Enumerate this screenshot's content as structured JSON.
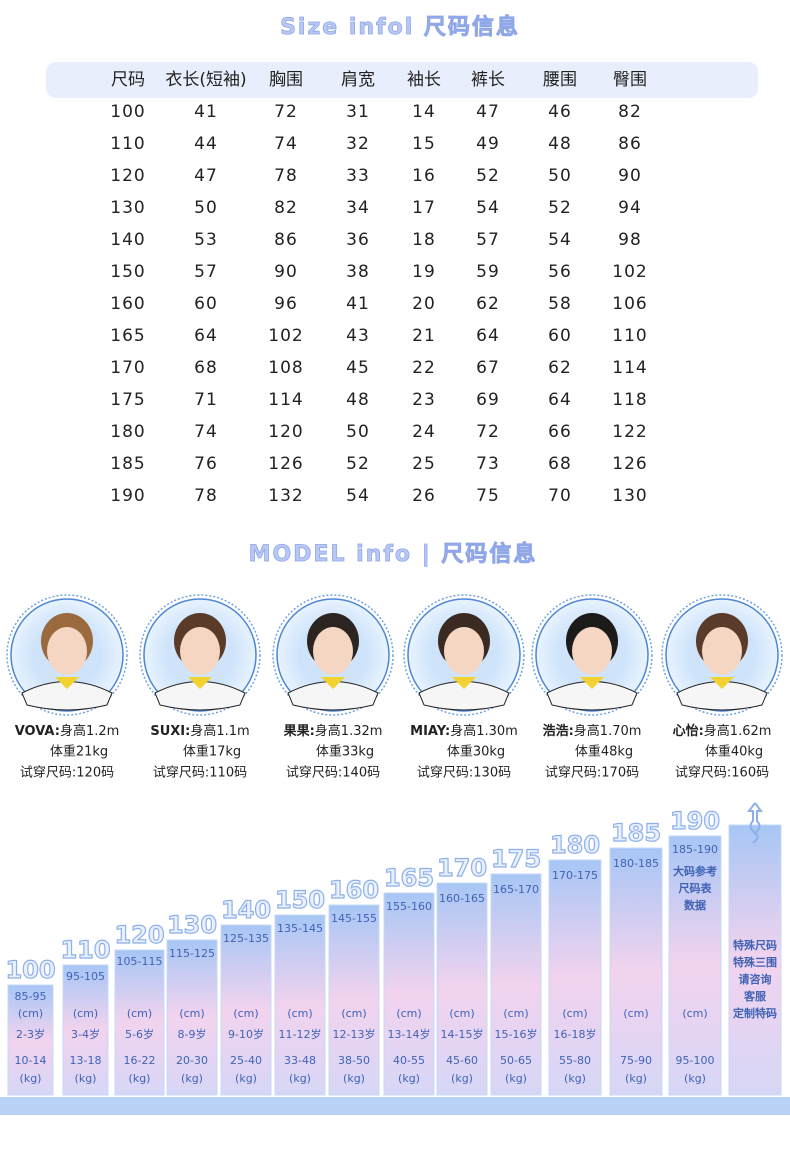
{
  "size_title": "Size infol 尺码信息",
  "size_table": {
    "header": [
      "尺码",
      "衣长(短袖)",
      "胸围",
      "肩宽",
      "袖长",
      "裤长",
      "腰围",
      "臀围"
    ],
    "rows": [
      [
        100,
        41,
        72,
        31,
        14,
        47,
        46,
        82
      ],
      [
        110,
        44,
        74,
        32,
        15,
        49,
        48,
        86
      ],
      [
        120,
        47,
        78,
        33,
        16,
        52,
        50,
        90
      ],
      [
        130,
        50,
        82,
        34,
        17,
        54,
        52,
        94
      ],
      [
        140,
        53,
        86,
        36,
        18,
        57,
        54,
        98
      ],
      [
        150,
        57,
        90,
        38,
        19,
        59,
        56,
        102
      ],
      [
        160,
        60,
        96,
        41,
        20,
        62,
        58,
        106
      ],
      [
        165,
        64,
        102,
        43,
        21,
        64,
        60,
        110
      ],
      [
        170,
        68,
        108,
        45,
        22,
        67,
        62,
        114
      ],
      [
        175,
        71,
        114,
        48,
        23,
        69,
        64,
        118
      ],
      [
        180,
        74,
        120,
        50,
        24,
        72,
        66,
        122
      ],
      [
        185,
        76,
        126,
        52,
        25,
        73,
        68,
        126
      ],
      [
        190,
        78,
        132,
        54,
        26,
        75,
        70,
        130
      ]
    ]
  },
  "model_title": "MODEL info | 尺码信息",
  "models": [
    {
      "name": "VOVA:",
      "height": "身高1.2m",
      "weight": "体重21kg",
      "size": "试穿尺码:120码"
    },
    {
      "name": "SUXI:",
      "height": "身高1.1m",
      "weight": "体重17kg",
      "size": "试穿尺码:110码"
    },
    {
      "name": "果果:",
      "height": "身高1.32m",
      "weight": "体重33kg",
      "size": "试穿尺码:140码"
    },
    {
      "name": "MIAY:",
      "height": "身高1.30m",
      "weight": "体重30kg",
      "size": "试穿尺码:130码"
    },
    {
      "name": "浩浩:",
      "height": "身高1.70m",
      "weight": "体重48kg",
      "size": "试穿尺码:170码"
    },
    {
      "name": "心怡:",
      "height": "身高1.62m",
      "weight": "体重40kg",
      "size": "试穿尺码:160码"
    }
  ],
  "size_bars": [
    {
      "label": "100",
      "cm": "85-95",
      "cm_unit": "(cm)",
      "age": "2-3岁",
      "kg": "10-14",
      "kg_unit": "(kg)"
    },
    {
      "label": "110",
      "cm": "95-105",
      "cm_unit": "(cm)",
      "age": "3-4岁",
      "kg": "13-18",
      "kg_unit": "(kg)"
    },
    {
      "label": "120",
      "cm": "105-115",
      "cm_unit": "(cm)",
      "age": "5-6岁",
      "kg": "16-22",
      "kg_unit": "(kg)"
    },
    {
      "label": "130",
      "cm": "115-125",
      "cm_unit": "(cm)",
      "age": "8-9岁",
      "kg": "20-30",
      "kg_unit": "(kg)"
    },
    {
      "label": "140",
      "cm": "125-135",
      "cm_unit": "(cm)",
      "age": "9-10岁",
      "kg": "25-40",
      "kg_unit": "(kg)"
    },
    {
      "label": "150",
      "cm": "135-145",
      "cm_unit": "(cm)",
      "age": "11-12岁",
      "kg": "33-48",
      "kg_unit": "(kg)"
    },
    {
      "label": "160",
      "cm": "145-155",
      "cm_unit": "(cm)",
      "age": "12-13岁",
      "kg": "38-50",
      "kg_unit": "(kg)"
    },
    {
      "label": "165",
      "cm": "155-160",
      "cm_unit": "(cm)",
      "age": "13-14岁",
      "kg": "40-55",
      "kg_unit": "(kg)"
    },
    {
      "label": "170",
      "cm": "160-165",
      "cm_unit": "(cm)",
      "age": "14-15岁",
      "kg": "45-60",
      "kg_unit": "(kg)"
    },
    {
      "label": "175",
      "cm": "165-170",
      "cm_unit": "(cm)",
      "age": "15-16岁",
      "kg": "50-65",
      "kg_unit": "(kg)"
    },
    {
      "label": "180",
      "cm": "170-175",
      "cm_unit": "(cm)",
      "age": "16-18岁",
      "kg": "55-80",
      "kg_unit": "(kg)"
    },
    {
      "label": "185",
      "cm": "180-185",
      "cm_unit": "(cm)",
      "kg": "75-90",
      "kg_unit": "(kg)"
    },
    {
      "label": "190",
      "cm": "185-190",
      "notes": [
        "大码参考",
        "尺码表",
        "数据"
      ],
      "cm_unit": "(cm)",
      "kg": "95-100",
      "kg_unit": "(kg)"
    },
    {
      "notes": [
        "特殊尺码",
        "特殊三围",
        "请咨询",
        "客服",
        "定制特码"
      ]
    }
  ]
}
